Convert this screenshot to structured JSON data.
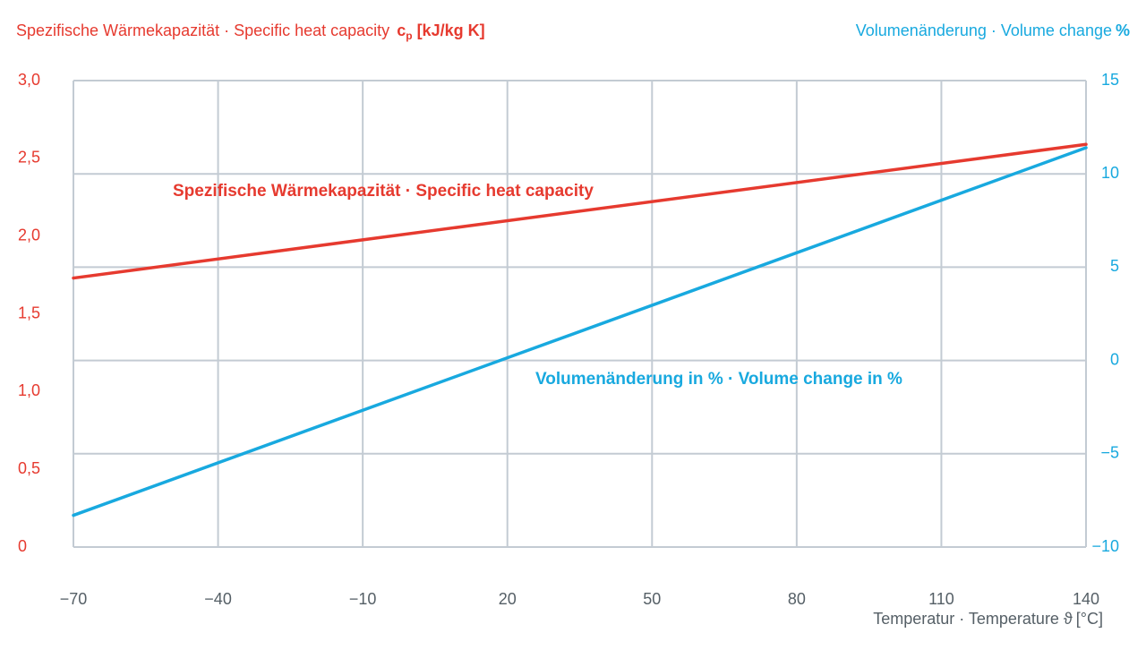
{
  "titles": {
    "left_axis_label": "Spezifische Wärmekapazität · Specific heat capacity",
    "left_axis_unit_prefix": "c",
    "left_axis_unit_sub": "p",
    "left_axis_unit_suffix": "[kJ/kg K]",
    "right_axis_label": "Volumenänderung · Volume change",
    "right_axis_unit": "%",
    "x_axis_label": "Temperatur · Temperature ϑ",
    "x_axis_unit": "[°C]"
  },
  "colors": {
    "heat_capacity": "#e63a2f",
    "volume_change": "#18a9df",
    "grid": "#c3cbd3",
    "axis_text": "#555f66"
  },
  "chart_data": {
    "type": "line",
    "xlabel": "Temperatur · Temperature ϑ [°C]",
    "xlim": [
      -70,
      140
    ],
    "x_ticks": [
      -70,
      -40,
      -10,
      20,
      50,
      80,
      110,
      140
    ],
    "x_tick_labels": [
      "−70",
      "−40",
      "−10",
      "20",
      "50",
      "80",
      "110",
      "140"
    ],
    "y_left": {
      "label": "Spezifische Wärmekapazität · Specific heat capacity c_p [kJ/kg K]",
      "lim": [
        0,
        3.0
      ],
      "ticks": [
        0,
        0.5,
        1.0,
        1.5,
        2.0,
        2.5,
        3.0
      ],
      "tick_labels": [
        "0",
        "0,5",
        "1,0",
        "1,5",
        "2,0",
        "2,5",
        "3,0"
      ]
    },
    "y_right": {
      "label": "Volumenänderung · Volume change %",
      "lim": [
        -10,
        15
      ],
      "ticks": [
        -10,
        -5,
        0,
        5,
        10,
        15
      ],
      "tick_labels": [
        "−10",
        "−5",
        "0",
        "5",
        "10",
        "15"
      ]
    },
    "grid": true,
    "series": [
      {
        "name": "Spezifische Wärmekapazität · Specific heat capacity",
        "axis": "left",
        "color": "#e63a2f",
        "x": [
          -70,
          140
        ],
        "y": [
          1.73,
          2.59
        ]
      },
      {
        "name": "Volumenänderung in % · Volume change in %",
        "axis": "right",
        "color": "#18a9df",
        "x": [
          -70,
          140
        ],
        "y": [
          -8.3,
          11.4
        ]
      }
    ]
  }
}
